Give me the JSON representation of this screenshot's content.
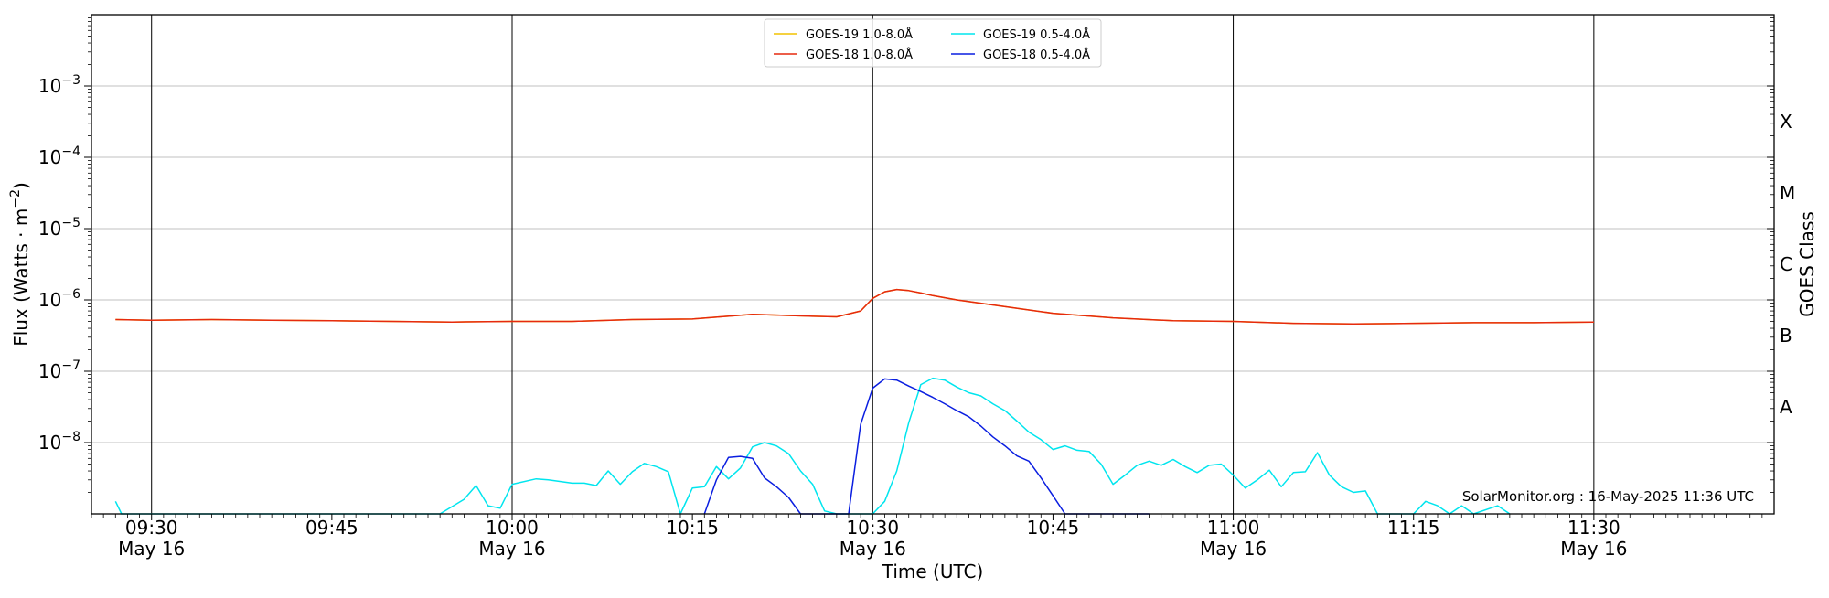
{
  "chart_data": {
    "type": "line",
    "xlabel": "Time (UTC)",
    "ylabel_parts": [
      "Flux (Watts · m",
      "−2",
      ")"
    ],
    "right_ylabel": "GOES Class",
    "credit": "SolarMonitor.org : 16-May-2025 11:36 UTC",
    "y_scale": "log",
    "ylim": [
      1e-09,
      0.01
    ],
    "xlim_min": [
      -5,
      135
    ],
    "grid_y": true,
    "legend_placement": "top-center",
    "x_ticks": [
      {
        "min": 0,
        "time": "09:30",
        "date": "May 16"
      },
      {
        "min": 15,
        "time": "09:45",
        "date": ""
      },
      {
        "min": 30,
        "time": "10:00",
        "date": "May 16"
      },
      {
        "min": 45,
        "time": "10:15",
        "date": ""
      },
      {
        "min": 60,
        "time": "10:30",
        "date": "May 16"
      },
      {
        "min": 75,
        "time": "10:45",
        "date": ""
      },
      {
        "min": 90,
        "time": "11:00",
        "date": "May 16"
      },
      {
        "min": 105,
        "time": "11:15",
        "date": ""
      },
      {
        "min": 120,
        "time": "11:30",
        "date": "May 16"
      }
    ],
    "vlines_min": [
      0,
      30,
      60,
      90,
      120
    ],
    "y_ticks": [
      {
        "exp": -8,
        "base": "10",
        "sup": "−8"
      },
      {
        "exp": -7,
        "base": "10",
        "sup": "−7"
      },
      {
        "exp": -6,
        "base": "10",
        "sup": "−6"
      },
      {
        "exp": -5,
        "base": "10",
        "sup": "−5"
      },
      {
        "exp": -4,
        "base": "10",
        "sup": "−4"
      },
      {
        "exp": -3,
        "base": "10",
        "sup": "−3"
      }
    ],
    "goes_classes": [
      {
        "label": "A",
        "exp": -7.5
      },
      {
        "label": "B",
        "exp": -6.5
      },
      {
        "label": "C",
        "exp": -5.5
      },
      {
        "label": "M",
        "exp": -4.5
      },
      {
        "label": "X",
        "exp": -3.5
      }
    ],
    "legend": [
      {
        "label": "GOES-19 1.0-8.0Å",
        "color": "#f2c200"
      },
      {
        "label": "GOES-19 0.5-4.0Å",
        "color": "#00e5ee"
      },
      {
        "label": "GOES-18 1.0-8.0Å",
        "color": "#e6290f"
      },
      {
        "label": "GOES-18 0.5-4.0Å",
        "color": "#0a1ee0"
      }
    ],
    "series": [
      {
        "name": "GOES-19 1.0-8.0Å",
        "color": "#f2c200",
        "x_min": [
          -3,
          0,
          5,
          10,
          15,
          20,
          25,
          30,
          35,
          40,
          45,
          50,
          55,
          57,
          59,
          60,
          61,
          62,
          63,
          64,
          65,
          67,
          70,
          75,
          80,
          85,
          90,
          95,
          100,
          105,
          110,
          115,
          120
        ],
        "y": [
          5.3e-07,
          5.2e-07,
          5.3e-07,
          5.2e-07,
          5.1e-07,
          5e-07,
          4.9e-07,
          5e-07,
          5e-07,
          5.3e-07,
          5.4e-07,
          6.3e-07,
          5.9e-07,
          5.8e-07,
          7e-07,
          1.05e-06,
          1.3e-06,
          1.4e-06,
          1.35e-06,
          1.25e-06,
          1.15e-06,
          1e-06,
          8.5e-07,
          6.5e-07,
          5.6e-07,
          5.1e-07,
          5e-07,
          4.7e-07,
          4.6e-07,
          4.7e-07,
          4.8e-07,
          4.8e-07,
          4.9e-07
        ]
      },
      {
        "name": "GOES-18 1.0-8.0Å",
        "color": "#e6290f",
        "x_min": [
          -3,
          0,
          5,
          10,
          15,
          20,
          25,
          30,
          35,
          40,
          45,
          50,
          55,
          57,
          59,
          60,
          61,
          62,
          63,
          64,
          65,
          67,
          70,
          75,
          80,
          85,
          90,
          95,
          100,
          105,
          110,
          115,
          120
        ],
        "y": [
          5.3e-07,
          5.2e-07,
          5.3e-07,
          5.2e-07,
          5.1e-07,
          5e-07,
          4.9e-07,
          5e-07,
          5e-07,
          5.3e-07,
          5.4e-07,
          6.3e-07,
          5.9e-07,
          5.8e-07,
          7e-07,
          1.05e-06,
          1.3e-06,
          1.4e-06,
          1.35e-06,
          1.25e-06,
          1.15e-06,
          1e-06,
          8.5e-07,
          6.5e-07,
          5.6e-07,
          5.1e-07,
          5e-07,
          4.7e-07,
          4.6e-07,
          4.7e-07,
          4.8e-07,
          4.8e-07,
          4.9e-07
        ]
      },
      {
        "name": "GOES-19 0.5-4.0Å",
        "color": "#00e5ee",
        "x_min": [
          -3,
          -2.5,
          0,
          10,
          15,
          24,
          26,
          27,
          28,
          29,
          30,
          32,
          33,
          35,
          36,
          37,
          38,
          39,
          40,
          41,
          42,
          43,
          44,
          45,
          46,
          47,
          48,
          49,
          50,
          51,
          52,
          53,
          54,
          55,
          56,
          57,
          58,
          59,
          60,
          61,
          62,
          63,
          64,
          65,
          66,
          67,
          68,
          69,
          70,
          71,
          72,
          73,
          74,
          75,
          76,
          77,
          78,
          79,
          80,
          81,
          82,
          83,
          84,
          85,
          86,
          87,
          88,
          89,
          90,
          91,
          92,
          93,
          94,
          95,
          96,
          97,
          98,
          99,
          100,
          101,
          102,
          104,
          105,
          106,
          107,
          108,
          109,
          110,
          112,
          113
        ],
        "y": [
          1.5e-09,
          1e-09,
          1e-09,
          1e-09,
          1e-09,
          1e-09,
          1.6e-09,
          2.5e-09,
          1.3e-09,
          1.2e-09,
          2.6e-09,
          3.1e-09,
          3e-09,
          2.7e-09,
          2.7e-09,
          2.5e-09,
          4e-09,
          2.6e-09,
          3.9e-09,
          5.1e-09,
          4.6e-09,
          3.9e-09,
          1e-09,
          2.3e-09,
          2.4e-09,
          4.6e-09,
          3.1e-09,
          4.4e-09,
          8.7e-09,
          1e-08,
          9e-09,
          7e-09,
          4e-09,
          2.6e-09,
          1.1e-09,
          1e-09,
          1e-09,
          1e-09,
          1e-09,
          1.5e-09,
          4e-09,
          1.9e-08,
          6.5e-08,
          8e-08,
          7.5e-08,
          6e-08,
          5e-08,
          4.5e-08,
          3.5e-08,
          2.8e-08,
          2e-08,
          1.4e-08,
          1.1e-08,
          8e-09,
          9e-09,
          7.8e-09,
          7.5e-09,
          5e-09,
          2.6e-09,
          3.5e-09,
          4.8e-09,
          5.5e-09,
          4.8e-09,
          5.8e-09,
          4.6e-09,
          3.8e-09,
          4.8e-09,
          5e-09,
          3.5e-09,
          2.3e-09,
          3e-09,
          4.1e-09,
          2.4e-09,
          3.8e-09,
          3.9e-09,
          7.2e-09,
          3.5e-09,
          2.4e-09,
          2e-09,
          2.1e-09,
          1e-09,
          1e-09,
          1e-09,
          1.5e-09,
          1.3e-09,
          1e-09,
          1.3e-09,
          1e-09,
          1.3e-09,
          1e-09
        ]
      },
      {
        "name": "GOES-18 0.5-4.0Å",
        "color": "#0a1ee0",
        "x_min": [
          46,
          47,
          48,
          49,
          50,
          51,
          52,
          53,
          54,
          55,
          56,
          57,
          58,
          59,
          60,
          61,
          62,
          63,
          64,
          65,
          66,
          67,
          68,
          69,
          70,
          71,
          72,
          73,
          74,
          75,
          76,
          77,
          78,
          79,
          80,
          81,
          82,
          83
        ],
        "y": [
          1e-09,
          3e-09,
          6.2e-09,
          6.4e-09,
          6e-09,
          3.2e-09,
          2.4e-09,
          1.7e-09,
          1e-09,
          1e-09,
          1e-09,
          1e-09,
          1e-09,
          1.8e-08,
          5.8e-08,
          7.8e-08,
          7.5e-08,
          6.2e-08,
          5.2e-08,
          4.3e-08,
          3.5e-08,
          2.8e-08,
          2.3e-08,
          1.7e-08,
          1.2e-08,
          9e-09,
          6.5e-09,
          5.5e-09,
          3.2e-09,
          1.8e-09,
          1e-09,
          1e-09,
          1e-09,
          1e-09,
          1e-09,
          1e-09,
          1e-09,
          1e-09
        ]
      }
    ]
  }
}
